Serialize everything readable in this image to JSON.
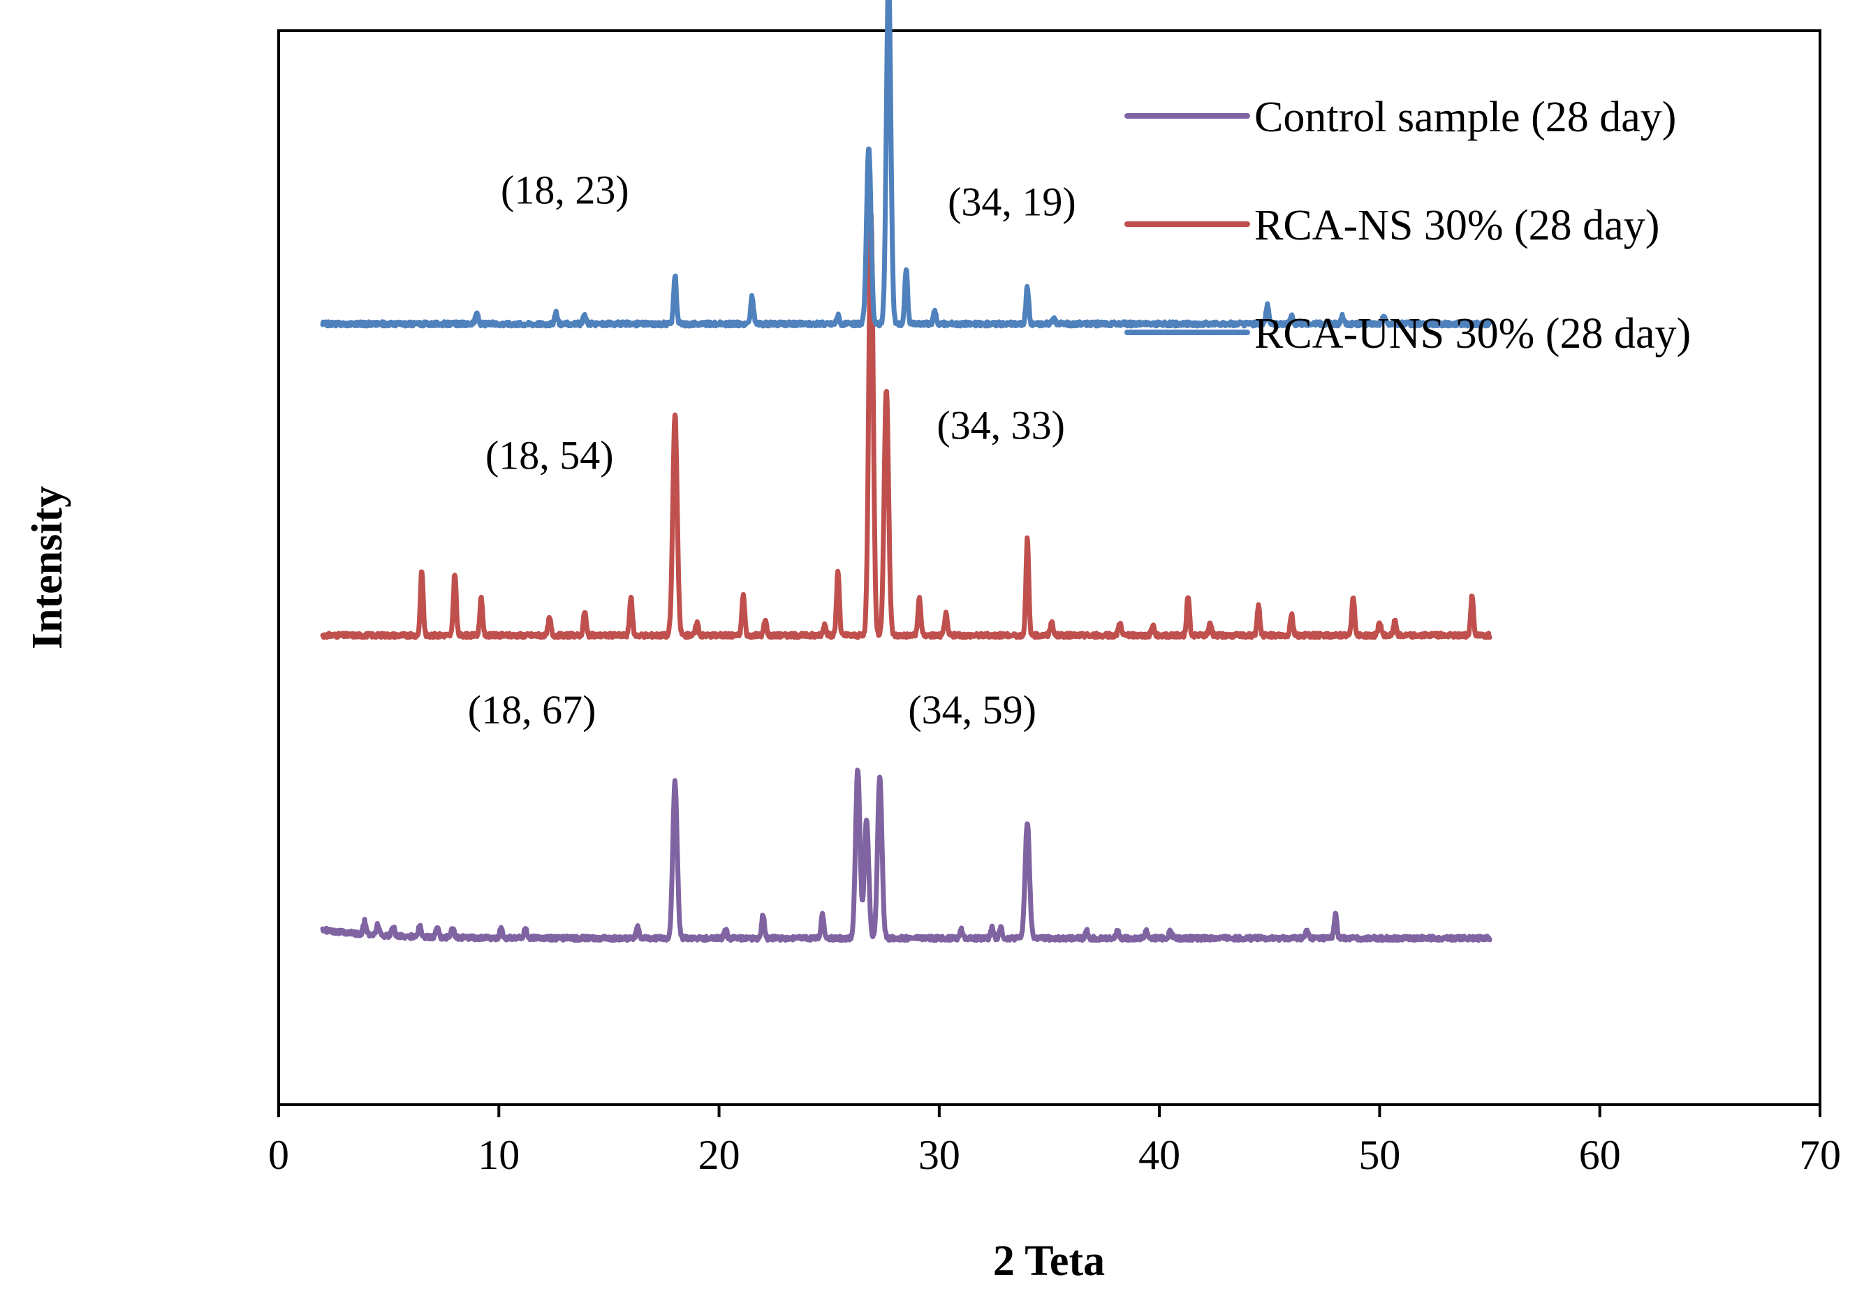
{
  "chart_data": {
    "type": "line",
    "title": "",
    "xlabel": "2 Teta",
    "ylabel": "Intensity",
    "xlim": [
      0,
      70
    ],
    "x_ticks": [
      0,
      10,
      20,
      30,
      40,
      50,
      60,
      70
    ],
    "y_ticks_visible": false,
    "grid": false,
    "legend_position": "top-right",
    "x_range_data": [
      2,
      55
    ],
    "series": [
      {
        "name": "Control sample (28 day)",
        "color": "#8064A2",
        "baseline": 0.155,
        "peaks": [
          [
            3.9,
            0.012
          ],
          [
            4.5,
            0.01
          ],
          [
            5.2,
            0.009
          ],
          [
            6.4,
            0.01
          ],
          [
            7.2,
            0.009
          ],
          [
            7.9,
            0.01
          ],
          [
            10.1,
            0.008
          ],
          [
            11.2,
            0.01
          ],
          [
            16.3,
            0.01
          ],
          [
            18.0,
            0.145
          ],
          [
            20.3,
            0.008
          ],
          [
            22.0,
            0.022
          ],
          [
            24.7,
            0.022
          ],
          [
            26.3,
            0.158
          ],
          [
            26.7,
            0.11
          ],
          [
            27.3,
            0.15
          ],
          [
            31.0,
            0.008
          ],
          [
            32.4,
            0.01
          ],
          [
            32.8,
            0.01
          ],
          [
            34.0,
            0.108
          ],
          [
            36.7,
            0.007
          ],
          [
            38.1,
            0.007
          ],
          [
            39.4,
            0.007
          ],
          [
            40.5,
            0.007
          ],
          [
            46.7,
            0.007
          ],
          [
            48.0,
            0.022
          ]
        ],
        "annotations": [
          {
            "text": "(18, 67)",
            "x": 11.5,
            "y_frac": 0.355
          },
          {
            "text": "(34, 59)",
            "x": 31.5,
            "y_frac": 0.355
          }
        ]
      },
      {
        "name": "RCA-NS 30% (28 day)",
        "color": "#C0504D",
        "baseline": 0.437,
        "peaks": [
          [
            6.5,
            0.06
          ],
          [
            8.0,
            0.058
          ],
          [
            9.2,
            0.035
          ],
          [
            12.3,
            0.016
          ],
          [
            13.9,
            0.022
          ],
          [
            16.0,
            0.035
          ],
          [
            18.0,
            0.205
          ],
          [
            19.0,
            0.012
          ],
          [
            21.1,
            0.038
          ],
          [
            22.1,
            0.014
          ],
          [
            24.8,
            0.01
          ],
          [
            25.4,
            0.06
          ],
          [
            26.9,
            0.395
          ],
          [
            27.6,
            0.23
          ],
          [
            29.1,
            0.035
          ],
          [
            30.3,
            0.02
          ],
          [
            34.0,
            0.09
          ],
          [
            35.1,
            0.012
          ],
          [
            38.2,
            0.012
          ],
          [
            39.7,
            0.01
          ],
          [
            41.3,
            0.037
          ],
          [
            42.3,
            0.012
          ],
          [
            44.5,
            0.027
          ],
          [
            46.0,
            0.02
          ],
          [
            48.8,
            0.037
          ],
          [
            50.0,
            0.012
          ],
          [
            50.7,
            0.014
          ],
          [
            54.2,
            0.037
          ]
        ],
        "annotations": [
          {
            "text": "(18, 54)",
            "x": 12.3,
            "y_frac": 0.592
          },
          {
            "text": "(34, 33)",
            "x": 32.8,
            "y_frac": 0.62
          }
        ]
      },
      {
        "name": "RCA-UNS 30% (28 day)",
        "color": "#4F81BD",
        "baseline": 0.727,
        "peaks": [
          [
            9.0,
            0.01
          ],
          [
            12.6,
            0.01
          ],
          [
            13.9,
            0.008
          ],
          [
            18.0,
            0.045
          ],
          [
            21.5,
            0.025
          ],
          [
            25.4,
            0.008
          ],
          [
            26.8,
            0.165
          ],
          [
            27.7,
            0.325
          ],
          [
            28.5,
            0.052
          ],
          [
            29.8,
            0.012
          ],
          [
            34.0,
            0.035
          ],
          [
            35.2,
            0.005
          ],
          [
            44.9,
            0.018
          ],
          [
            46.0,
            0.008
          ],
          [
            48.3,
            0.008
          ],
          [
            50.2,
            0.008
          ]
        ],
        "annotations": [
          {
            "text": "(18, 23)",
            "x": 13.0,
            "y_frac": 0.839
          },
          {
            "text": "(34, 19)",
            "x": 33.3,
            "y_frac": 0.828
          }
        ]
      }
    ]
  }
}
